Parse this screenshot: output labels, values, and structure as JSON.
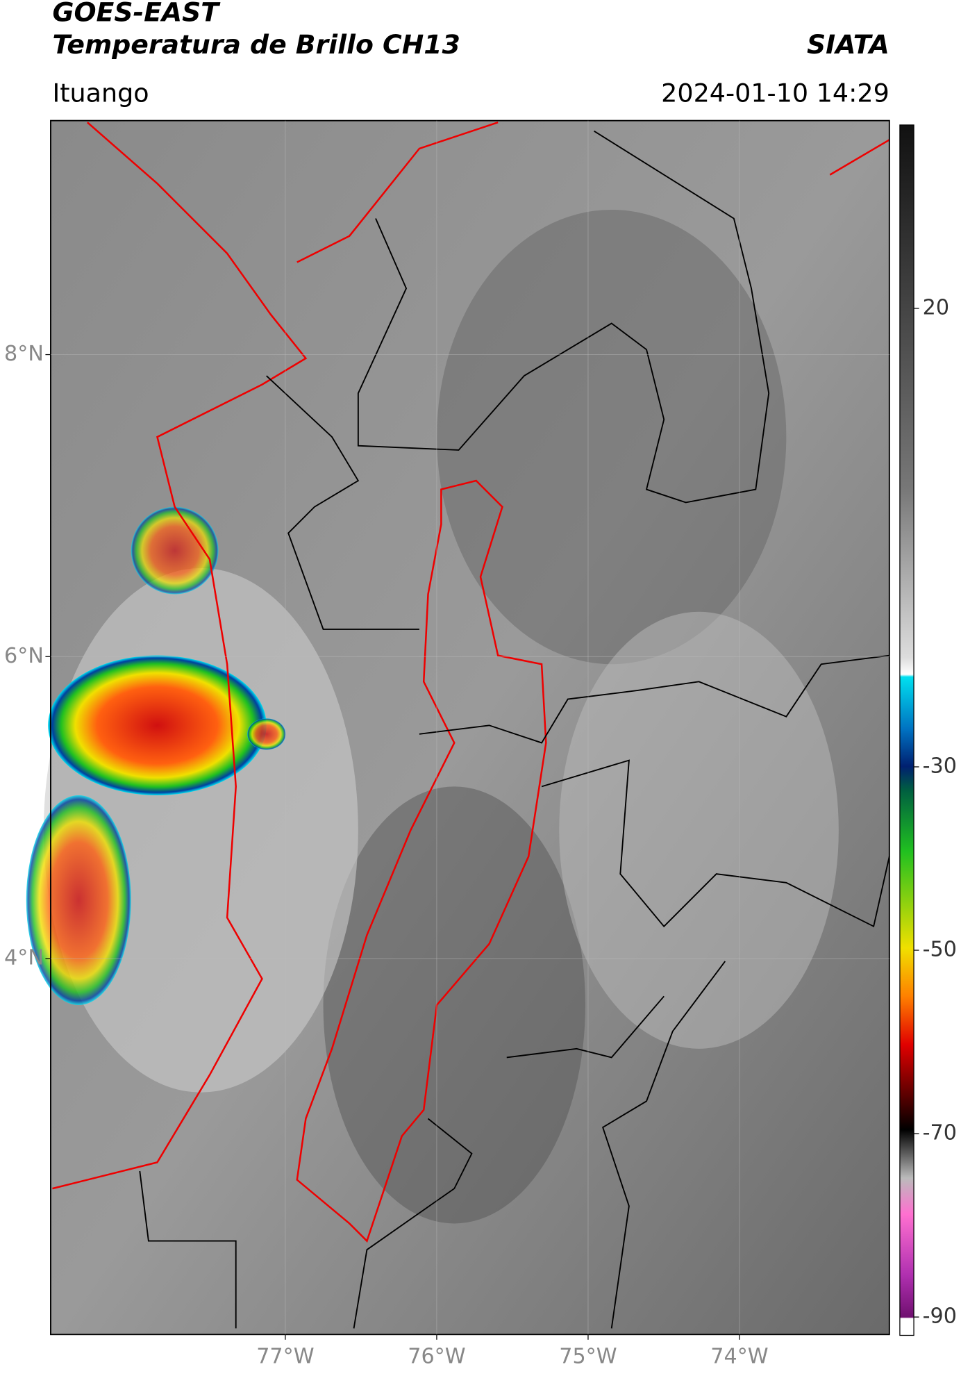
{
  "header": {
    "title": "GOES-EAST",
    "subtitle": "Temperatura de Brillo CH13",
    "brand": "SIATA",
    "location": "Ituango",
    "timestamp": "2024-01-10 14:29"
  },
  "map": {
    "xlim": [
      -78.55,
      -73.01
    ],
    "ylim": [
      1.51,
      9.55
    ],
    "lat_ticks": [
      {
        "value": 8,
        "label": "8°N"
      },
      {
        "value": 6,
        "label": "6°N"
      },
      {
        "value": 4,
        "label": "4°N"
      }
    ],
    "lon_ticks": [
      {
        "value": -77,
        "label": "77°W"
      },
      {
        "value": -76,
        "label": "76°W"
      },
      {
        "value": -75,
        "label": "75°W"
      },
      {
        "value": -74,
        "label": "74°W"
      }
    ],
    "grid": true
  },
  "colorbar": {
    "range": [
      40,
      -92
    ],
    "ticks": [
      20,
      -30,
      -50,
      -70,
      -90
    ]
  }
}
